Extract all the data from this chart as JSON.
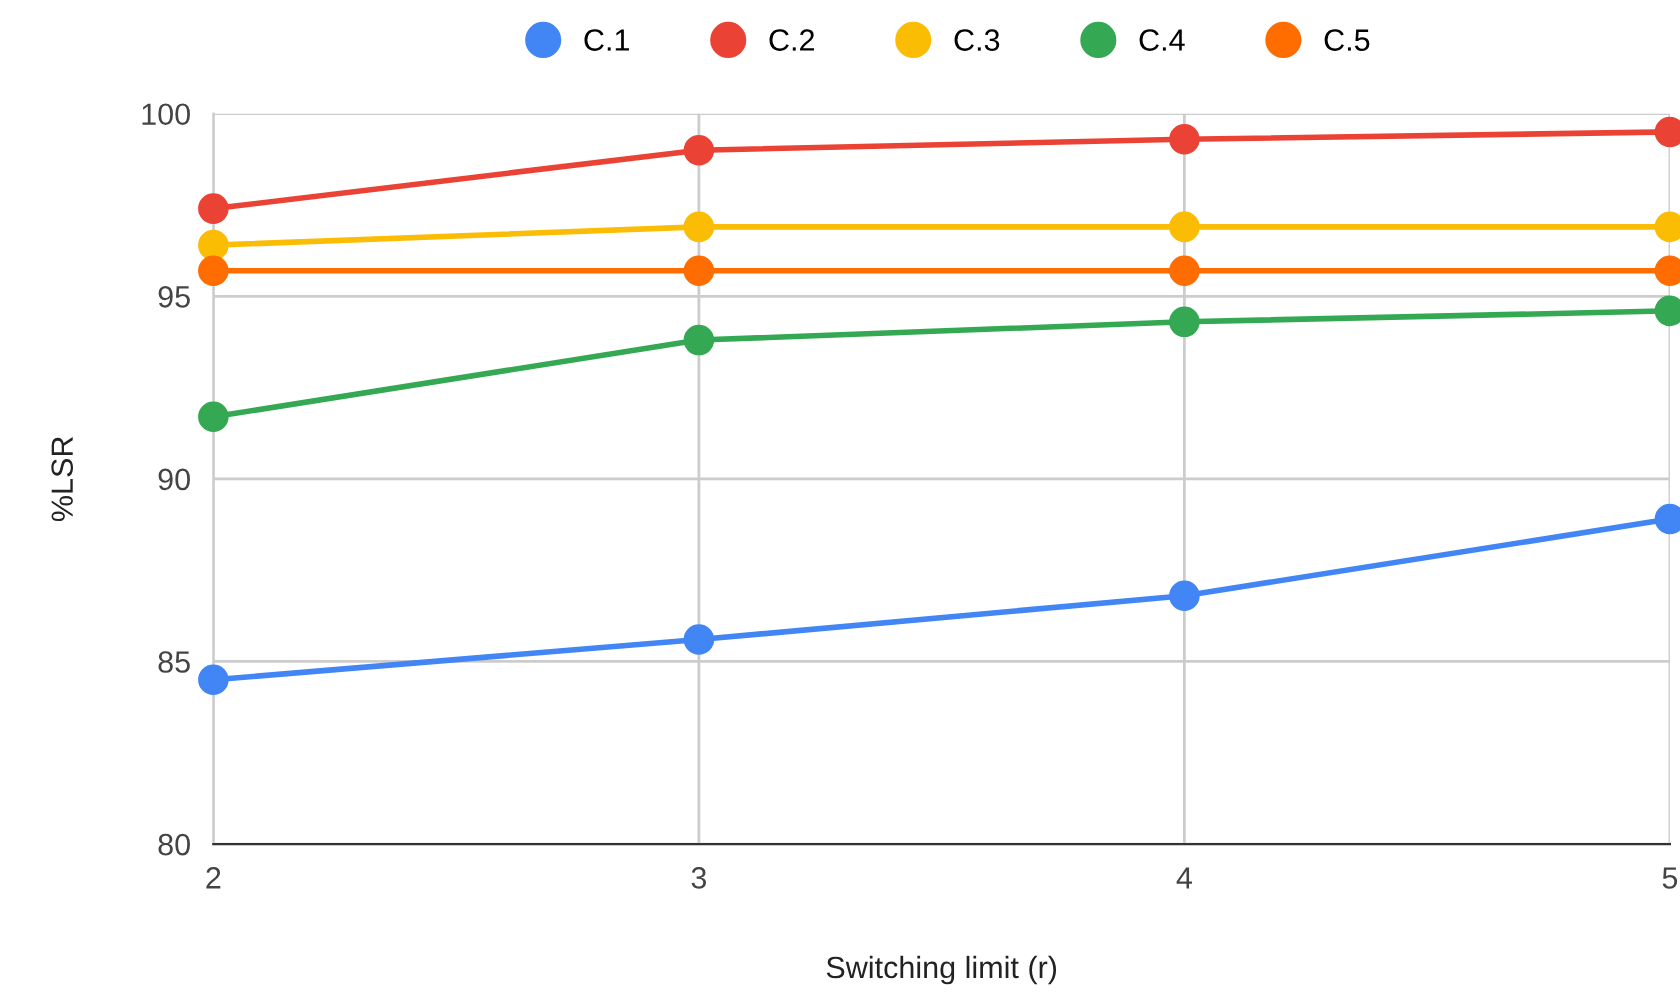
{
  "chart_data": {
    "type": "line",
    "xlabel": "Switching limit (r)",
    "ylabel": "%LSR",
    "x": [
      2,
      3,
      4,
      5
    ],
    "xlim": [
      2,
      5
    ],
    "xticks": [
      2,
      3,
      4,
      5
    ],
    "ylim": [
      80,
      100
    ],
    "yticks": [
      80,
      85,
      90,
      95,
      100
    ],
    "grid": true,
    "legend": "top",
    "marker": "circle",
    "line_style": "solid",
    "series": [
      {
        "name": "C.1",
        "color": "#4285f4",
        "values": [
          84.5,
          85.6,
          86.8,
          88.9
        ]
      },
      {
        "name": "C.2",
        "color": "#ea4335",
        "values": [
          97.4,
          99.0,
          99.3,
          99.5
        ]
      },
      {
        "name": "C.3",
        "color": "#fbbc04",
        "values": [
          96.4,
          96.9,
          96.9,
          96.9
        ]
      },
      {
        "name": "C.4",
        "color": "#34a853",
        "values": [
          91.7,
          93.8,
          94.3,
          94.6
        ]
      },
      {
        "name": "C.5",
        "color": "#ff6d01",
        "values": [
          95.7,
          95.7,
          95.7,
          95.7
        ]
      }
    ]
  }
}
